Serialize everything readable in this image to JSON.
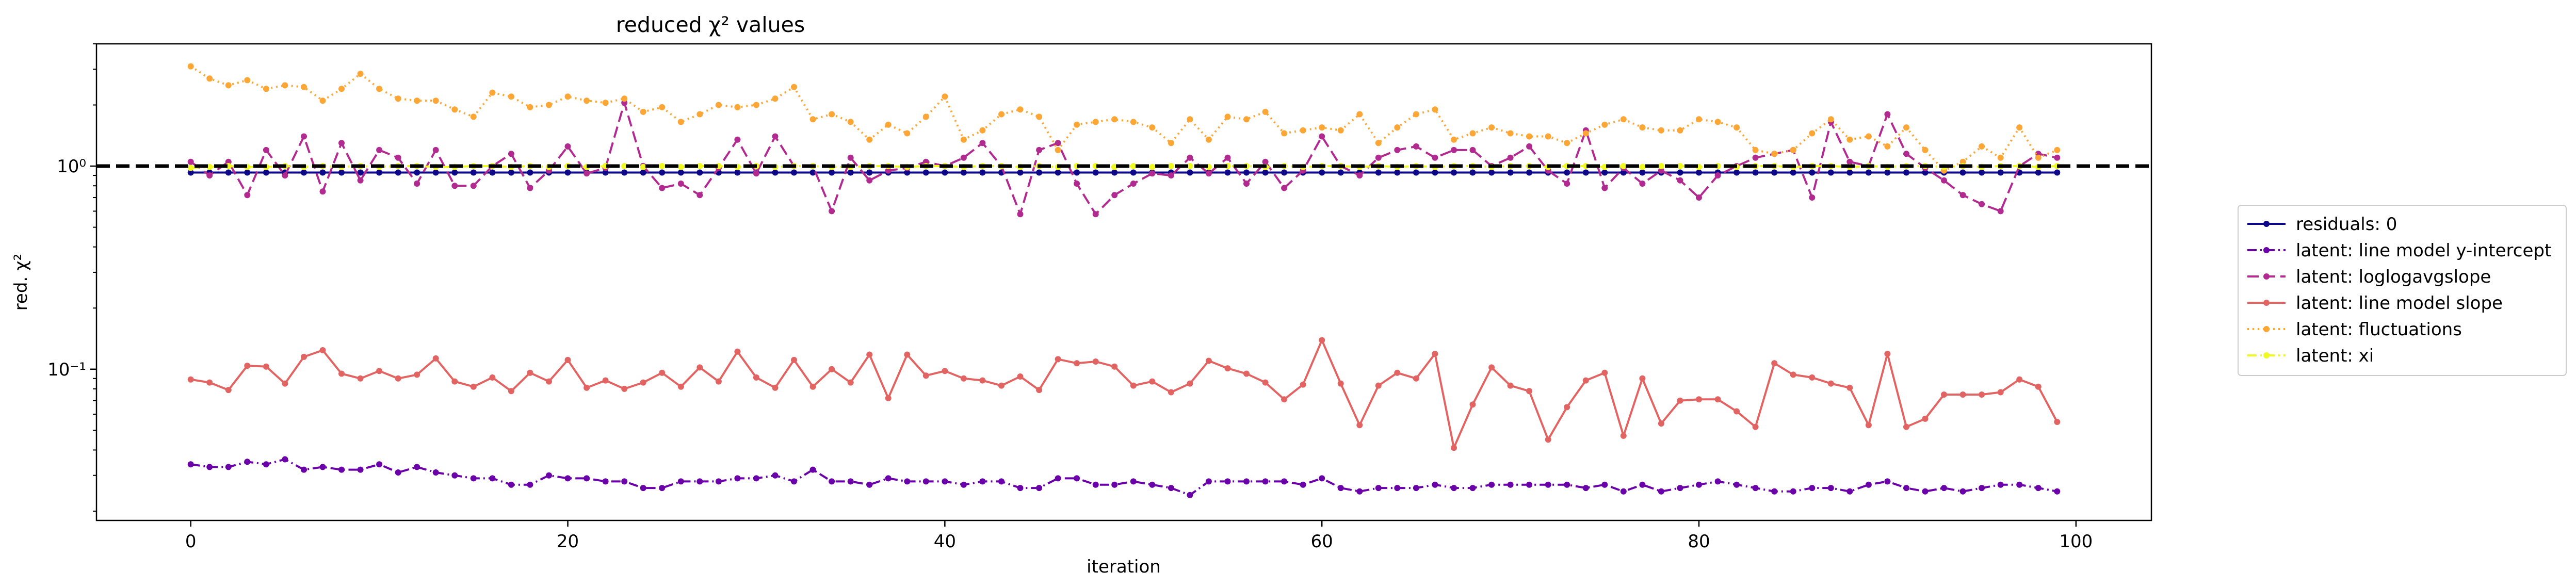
{
  "chart_data": {
    "type": "line",
    "title": "reduced χ² values",
    "xlabel": "iteration",
    "ylabel": "red. χ²",
    "xlim": [
      -5,
      104
    ],
    "ylim": [
      0.018,
      4.0
    ],
    "yscale": "log",
    "grid": false,
    "legend_position": "outside-right",
    "x_ticks": [
      0,
      20,
      40,
      60,
      80,
      100
    ],
    "x_tick_labels": [
      "0",
      "20",
      "40",
      "60",
      "80",
      "100"
    ],
    "y_ticks": [
      0.1,
      1
    ],
    "y_tick_labels": [
      "10⁻¹",
      "10⁰"
    ],
    "reference_line": {
      "y": 1.0,
      "color": "#000000",
      "style": "dashed"
    },
    "x": [
      0,
      1,
      2,
      3,
      4,
      5,
      6,
      7,
      8,
      9,
      10,
      11,
      12,
      13,
      14,
      15,
      16,
      17,
      18,
      19,
      20,
      21,
      22,
      23,
      24,
      25,
      26,
      27,
      28,
      29,
      30,
      31,
      32,
      33,
      34,
      35,
      36,
      37,
      38,
      39,
      40,
      41,
      42,
      43,
      44,
      45,
      46,
      47,
      48,
      49,
      50,
      51,
      52,
      53,
      54,
      55,
      56,
      57,
      58,
      59,
      60,
      61,
      62,
      63,
      64,
      65,
      66,
      67,
      68,
      69,
      70,
      71,
      72,
      73,
      74,
      75,
      76,
      77,
      78,
      79,
      80,
      81,
      82,
      83,
      84,
      85,
      86,
      87,
      88,
      89,
      90,
      91,
      92,
      93,
      94,
      95,
      96,
      97,
      98,
      99
    ],
    "series": [
      {
        "name": "residuals: 0",
        "color": "#0d0887",
        "dash": "solid",
        "values": [
          0.93,
          0.93,
          0.93,
          0.93,
          0.93,
          0.93,
          0.93,
          0.93,
          0.93,
          0.93,
          0.93,
          0.93,
          0.93,
          0.93,
          0.93,
          0.93,
          0.93,
          0.93,
          0.93,
          0.93,
          0.93,
          0.93,
          0.93,
          0.93,
          0.93,
          0.93,
          0.93,
          0.93,
          0.93,
          0.93,
          0.93,
          0.93,
          0.93,
          0.93,
          0.93,
          0.93,
          0.93,
          0.93,
          0.93,
          0.93,
          0.93,
          0.93,
          0.93,
          0.93,
          0.93,
          0.93,
          0.93,
          0.93,
          0.93,
          0.93,
          0.93,
          0.93,
          0.93,
          0.93,
          0.93,
          0.93,
          0.93,
          0.93,
          0.93,
          0.93,
          0.93,
          0.93,
          0.93,
          0.93,
          0.93,
          0.93,
          0.93,
          0.93,
          0.93,
          0.93,
          0.93,
          0.93,
          0.93,
          0.93,
          0.93,
          0.93,
          0.93,
          0.93,
          0.93,
          0.93,
          0.93,
          0.93,
          0.93,
          0.93,
          0.93,
          0.93,
          0.93,
          0.93,
          0.93,
          0.93,
          0.93,
          0.93,
          0.93,
          0.93,
          0.93,
          0.93,
          0.93,
          0.93,
          0.93,
          0.93
        ]
      },
      {
        "name": "latent: line model y-intercept",
        "color": "#6a00a8",
        "dash": "dashdot",
        "values": [
          0.034,
          0.033,
          0.033,
          0.035,
          0.034,
          0.036,
          0.032,
          0.033,
          0.032,
          0.032,
          0.034,
          0.031,
          0.033,
          0.031,
          0.03,
          0.029,
          0.029,
          0.027,
          0.027,
          0.03,
          0.029,
          0.029,
          0.028,
          0.028,
          0.026,
          0.026,
          0.028,
          0.028,
          0.028,
          0.029,
          0.029,
          0.03,
          0.028,
          0.032,
          0.028,
          0.028,
          0.027,
          0.029,
          0.028,
          0.028,
          0.028,
          0.027,
          0.028,
          0.028,
          0.026,
          0.026,
          0.029,
          0.029,
          0.027,
          0.027,
          0.028,
          0.027,
          0.026,
          0.024,
          0.028,
          0.028,
          0.028,
          0.028,
          0.028,
          0.027,
          0.029,
          0.026,
          0.025,
          0.026,
          0.026,
          0.026,
          0.027,
          0.026,
          0.026,
          0.027,
          0.027,
          0.027,
          0.027,
          0.027,
          0.026,
          0.027,
          0.025,
          0.027,
          0.025,
          0.026,
          0.027,
          0.028,
          0.027,
          0.026,
          0.025,
          0.025,
          0.026,
          0.026,
          0.025,
          0.027,
          0.028,
          0.026,
          0.025,
          0.026,
          0.025,
          0.026,
          0.027,
          0.027,
          0.026,
          0.025
        ]
      },
      {
        "name": "latent: loglogavgslope",
        "color": "#b12a90",
        "dash": "dashed",
        "values": [
          1.05,
          0.9,
          1.05,
          0.72,
          1.2,
          0.9,
          1.4,
          0.75,
          1.3,
          0.85,
          1.2,
          1.1,
          0.82,
          1.2,
          0.8,
          0.8,
          1.0,
          1.15,
          0.78,
          0.95,
          1.25,
          0.92,
          0.98,
          2.05,
          1.0,
          0.78,
          0.82,
          0.72,
          0.98,
          1.35,
          0.92,
          1.4,
          1.0,
          1.0,
          0.6,
          1.1,
          0.85,
          0.95,
          0.98,
          1.05,
          1.0,
          1.1,
          1.3,
          1.0,
          0.58,
          1.2,
          1.3,
          0.82,
          0.58,
          0.72,
          0.82,
          0.92,
          0.9,
          1.1,
          0.92,
          1.1,
          0.82,
          1.05,
          0.78,
          0.95,
          1.4,
          1.0,
          0.9,
          1.1,
          1.2,
          1.25,
          1.1,
          1.2,
          1.2,
          1.0,
          1.1,
          1.25,
          0.95,
          0.82,
          1.5,
          0.78,
          0.98,
          0.82,
          0.95,
          0.85,
          0.7,
          0.9,
          1.0,
          1.1,
          1.15,
          1.2,
          0.7,
          1.65,
          1.05,
          1.0,
          1.8,
          1.15,
          0.98,
          0.85,
          0.72,
          0.65,
          0.6,
          1.0,
          1.15,
          1.1
        ]
      },
      {
        "name": "latent: line model slope",
        "color": "#e16462",
        "dash": "solid",
        "values": [
          0.089,
          0.086,
          0.079,
          0.104,
          0.103,
          0.085,
          0.115,
          0.124,
          0.095,
          0.09,
          0.098,
          0.09,
          0.094,
          0.113,
          0.087,
          0.082,
          0.091,
          0.078,
          0.096,
          0.087,
          0.111,
          0.081,
          0.088,
          0.08,
          0.086,
          0.096,
          0.082,
          0.102,
          0.087,
          0.122,
          0.091,
          0.081,
          0.111,
          0.082,
          0.1,
          0.086,
          0.118,
          0.072,
          0.118,
          0.093,
          0.098,
          0.09,
          0.088,
          0.083,
          0.092,
          0.079,
          0.112,
          0.107,
          0.109,
          0.103,
          0.083,
          0.087,
          0.077,
          0.085,
          0.11,
          0.101,
          0.095,
          0.086,
          0.071,
          0.084,
          0.139,
          0.085,
          0.053,
          0.083,
          0.096,
          0.09,
          0.119,
          0.041,
          0.067,
          0.102,
          0.083,
          0.078,
          0.045,
          0.065,
          0.088,
          0.096,
          0.047,
          0.09,
          0.054,
          0.07,
          0.071,
          0.071,
          0.062,
          0.052,
          0.107,
          0.094,
          0.091,
          0.085,
          0.081,
          0.053,
          0.119,
          0.052,
          0.057,
          0.075,
          0.075,
          0.075,
          0.077,
          0.089,
          0.082,
          0.055
        ]
      },
      {
        "name": "latent: fluctuations",
        "color": "#fca636",
        "dash": "dotted",
        "values": [
          3.1,
          2.7,
          2.5,
          2.65,
          2.4,
          2.5,
          2.45,
          2.1,
          2.4,
          2.85,
          2.4,
          2.15,
          2.1,
          2.1,
          1.9,
          1.75,
          2.3,
          2.2,
          1.95,
          2.0,
          2.2,
          2.1,
          2.05,
          2.15,
          1.85,
          1.95,
          1.65,
          1.8,
          2.0,
          1.95,
          2.0,
          2.15,
          2.45,
          1.7,
          1.8,
          1.65,
          1.35,
          1.6,
          1.45,
          1.75,
          2.2,
          1.35,
          1.5,
          1.8,
          1.9,
          1.75,
          1.2,
          1.6,
          1.65,
          1.7,
          1.65,
          1.55,
          1.3,
          1.7,
          1.35,
          1.75,
          1.7,
          1.85,
          1.45,
          1.5,
          1.55,
          1.5,
          1.8,
          1.3,
          1.55,
          1.8,
          1.9,
          1.35,
          1.45,
          1.55,
          1.45,
          1.4,
          1.4,
          1.3,
          1.45,
          1.6,
          1.7,
          1.55,
          1.5,
          1.5,
          1.7,
          1.65,
          1.55,
          1.2,
          1.15,
          1.2,
          1.45,
          1.7,
          1.35,
          1.4,
          1.25,
          1.55,
          1.2,
          0.95,
          1.05,
          1.25,
          1.1,
          1.55,
          1.1,
          1.2
        ]
      },
      {
        "name": "latent: xi",
        "color": "#f0f921",
        "dash": "dashdot",
        "values": [
          0.98,
          0.99,
          1.0,
          0.99,
          0.99,
          1.0,
          0.99,
          1.0,
          0.99,
          1.0,
          0.99,
          1.0,
          1.0,
          0.99,
          0.99,
          1.0,
          1.0,
          0.99,
          1.0,
          0.99,
          1.0,
          0.99,
          1.0,
          1.0,
          0.99,
          1.0,
          0.99,
          1.0,
          1.0,
          0.99,
          1.0,
          0.99,
          1.0,
          1.0,
          0.99,
          0.99,
          1.0,
          1.0,
          0.99,
          1.0,
          1.0,
          0.99,
          1.0,
          1.0,
          0.99,
          1.0,
          0.99,
          1.0,
          1.0,
          0.99,
          1.0,
          0.99,
          1.0,
          1.0,
          0.99,
          1.0,
          1.0,
          0.99,
          1.0,
          0.99,
          1.0,
          1.0,
          0.99,
          1.0,
          0.99,
          1.0,
          0.99,
          1.0,
          1.0,
          0.99,
          1.0,
          1.0,
          0.99,
          1.0,
          1.0,
          0.99,
          1.0,
          0.99,
          1.0,
          1.0,
          0.99,
          1.0,
          0.99,
          1.0,
          1.0,
          0.99,
          1.0,
          1.0,
          0.99,
          1.0,
          0.99,
          1.0,
          1.0,
          0.99,
          1.0,
          0.99,
          1.0,
          1.0,
          0.99,
          1.0
        ]
      }
    ]
  }
}
